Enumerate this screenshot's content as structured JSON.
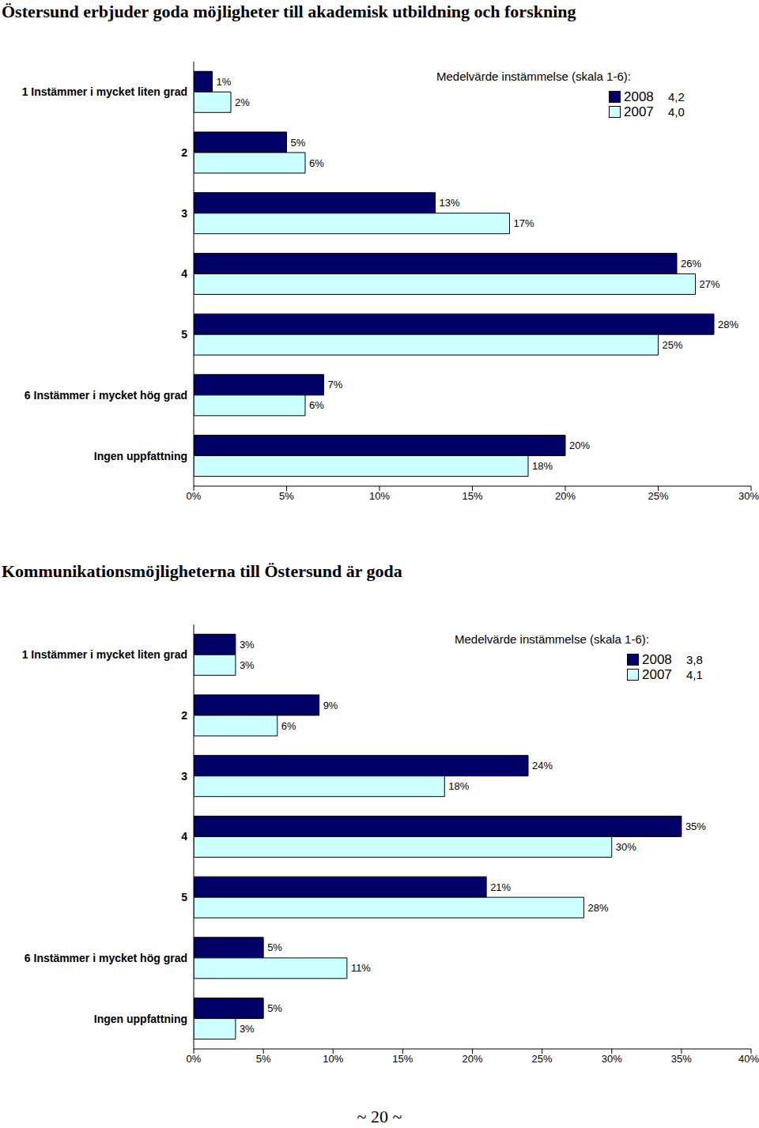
{
  "chart_data": [
    {
      "type": "bar",
      "title": "Östersund erbjuder goda möjligheter till akademisk utbildning och forskning",
      "orientation": "horizontal",
      "data_labels": true,
      "grid": false,
      "categories": [
        "1 Instämmer i mycket liten grad",
        "2",
        "3",
        "4",
        "5",
        "6 Instämmer i mycket hög grad",
        "Ingen uppfattning"
      ],
      "series": [
        {
          "name": "2008",
          "color": "#000066",
          "values": [
            1,
            5,
            13,
            26,
            28,
            7,
            20
          ],
          "value_labels": [
            "1%",
            "5%",
            "13%",
            "26%",
            "28%",
            "7%",
            "20%"
          ],
          "mean": {
            "value": 4.2,
            "label": "4,2"
          }
        },
        {
          "name": "2007",
          "color": "#ccffff",
          "values": [
            2,
            6,
            17,
            27,
            25,
            6,
            18
          ],
          "value_labels": [
            "2%",
            "6%",
            "17%",
            "27%",
            "25%",
            "6%",
            "18%"
          ],
          "mean": {
            "value": 4.0,
            "label": "4,0"
          }
        }
      ],
      "xlim": [
        0,
        30
      ],
      "xticks": [
        {
          "value": 0,
          "label": "0%"
        },
        {
          "value": 5,
          "label": "5%"
        },
        {
          "value": 10,
          "label": "10%"
        },
        {
          "value": 15,
          "label": "15%"
        },
        {
          "value": 20,
          "label": "20%"
        },
        {
          "value": 25,
          "label": "25%"
        },
        {
          "value": 30,
          "label": "30%"
        }
      ],
      "annotations": [
        "Medelvärde instämmelse (skala 1-6):"
      ]
    },
    {
      "type": "bar",
      "title": "Kommunikationsmöjligheterna till Östersund är goda",
      "orientation": "horizontal",
      "data_labels": true,
      "grid": false,
      "categories": [
        "1 Instämmer i mycket liten grad",
        "2",
        "3",
        "4",
        "5",
        "6 Instämmer i mycket hög grad",
        "Ingen uppfattning"
      ],
      "series": [
        {
          "name": "2008",
          "color": "#000066",
          "values": [
            3,
            9,
            24,
            35,
            21,
            5,
            5
          ],
          "value_labels": [
            "3%",
            "9%",
            "24%",
            "35%",
            "21%",
            "5%",
            "5%"
          ],
          "mean": {
            "value": 3.8,
            "label": "3,8"
          }
        },
        {
          "name": "2007",
          "color": "#ccffff",
          "values": [
            3,
            6,
            18,
            30,
            28,
            11,
            3
          ],
          "value_labels": [
            "3%",
            "6%",
            "18%",
            "30%",
            "28%",
            "11%",
            "3%"
          ],
          "mean": {
            "value": 4.1,
            "label": "4,1"
          }
        }
      ],
      "xlim": [
        0,
        40
      ],
      "xticks": [
        {
          "value": 0,
          "label": "0%"
        },
        {
          "value": 5,
          "label": "5%"
        },
        {
          "value": 10,
          "label": "10%"
        },
        {
          "value": 15,
          "label": "15%"
        },
        {
          "value": 20,
          "label": "20%"
        },
        {
          "value": 25,
          "label": "25%"
        },
        {
          "value": 30,
          "label": "30%"
        },
        {
          "value": 35,
          "label": "35%"
        },
        {
          "value": 40,
          "label": "40%"
        }
      ],
      "annotations": [
        "Medelvärde instämmelse (skala 1-6):"
      ]
    }
  ],
  "footer": "~ 20 ~"
}
